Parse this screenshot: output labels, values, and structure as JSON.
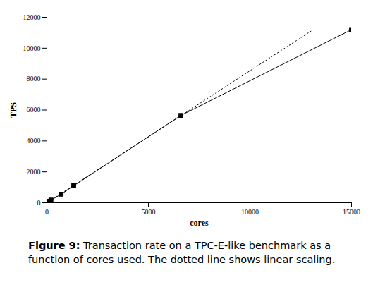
{
  "chart_data": {
    "type": "line",
    "caption_label": "Figure 9:",
    "caption": "Transaction rate on a TPC-E-like benchmark as a function of cores used. The dotted line shows linear scaling.",
    "x_label": "cores",
    "y_label": "TPS",
    "series": [
      {
        "x": [
          50,
          100,
          200,
          700,
          1320,
          6600,
          15000
        ],
        "values": [
          45,
          90,
          170,
          550,
          1100,
          5650,
          11200
        ],
        "color": "#000000",
        "marker": "square",
        "line_style": "solid"
      },
      {
        "x": [
          0,
          13000
        ],
        "values": [
          0,
          11100
        ],
        "color": "#000000",
        "marker": "none",
        "line_style": "dotted"
      }
    ],
    "xlim": [
      0,
      15000
    ],
    "xticks": [
      0,
      5000,
      10000,
      15000
    ],
    "ylim": [
      0,
      12000
    ],
    "yticks": [
      0,
      2000,
      4000,
      6000,
      8000,
      10000,
      12000
    ],
    "grid": false
  }
}
